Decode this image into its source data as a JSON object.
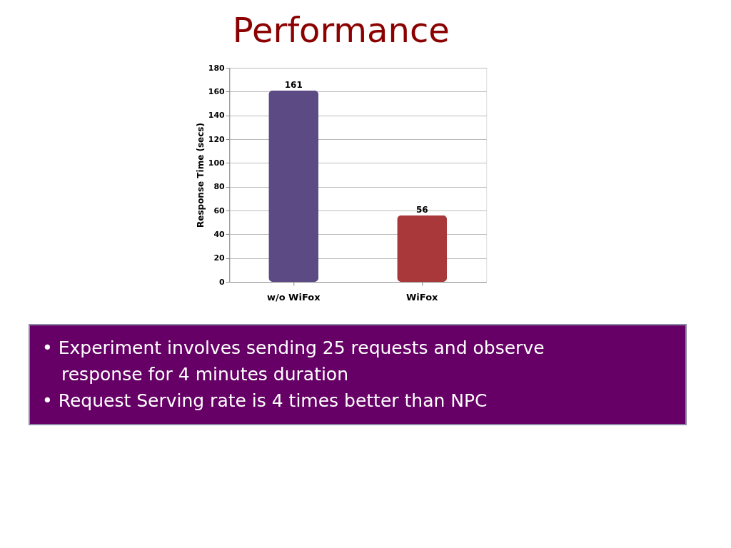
{
  "chart_data": {
    "type": "bar",
    "title": "Performance",
    "ylabel": "Response Time (secs)",
    "categories": [
      "w/o WiFox",
      "WiFox"
    ],
    "values": [
      161,
      56
    ],
    "colors": [
      "#5c4a85",
      "#a8383a"
    ],
    "ylim": [
      0,
      180
    ],
    "yticks": [
      0,
      20,
      40,
      60,
      80,
      100,
      120,
      140,
      160,
      180
    ],
    "grid": "y",
    "data_labels": true,
    "annotations": [
      "• Experiment involves sending 25 requests and observe response for 4 minutes duration",
      "• Request Serving rate is 4 times better than NPC"
    ]
  }
}
